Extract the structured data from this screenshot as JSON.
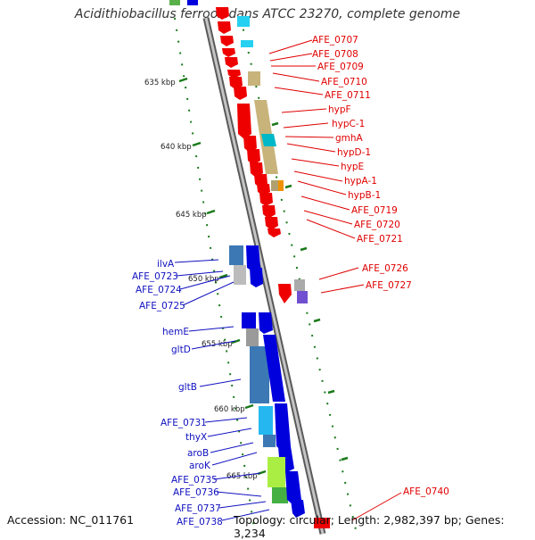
{
  "title": "Acidithiobacillus ferrooxidans ATCC 23270, complete genome",
  "accession": "Accession: NC_011761",
  "summary": "Topology: circular; Length: 2,982,397 bp; Genes: 3,234",
  "colors": {
    "forward_cds": "#ee0000",
    "reverse_cds": "#0000dd",
    "backbone": "#8c8c8c",
    "tick": "#1a7a1a",
    "red_label": "#e00000",
    "blue_label": "#1010c0"
  },
  "kbp_ticks": [
    "635 kbp",
    "640 kbp",
    "645 kbp",
    "650 kbp",
    "655 kbp",
    "660 kbp",
    "665 kbp"
  ],
  "red_labels": [
    "AFE_0707",
    "AFE_0708",
    "AFE_0709",
    "AFE_0710",
    "AFE_0711",
    "hypF",
    "hypC-1",
    "gmhA",
    "hypD-1",
    "hypE",
    "hypA-1",
    "hypB-1",
    "AFE_0719",
    "AFE_0720",
    "AFE_0721",
    "AFE_0726",
    "AFE_0727",
    "AFE_0740"
  ],
  "blue_labels": [
    "ilvA",
    "AFE_0723",
    "AFE_0724",
    "AFE_0725",
    "hemE",
    "gltD",
    "gltB",
    "AFE_0731",
    "thyX",
    "aroB",
    "aroK",
    "AFE_0735",
    "AFE_0736",
    "AFE_0737",
    "AFE_0738"
  ]
}
